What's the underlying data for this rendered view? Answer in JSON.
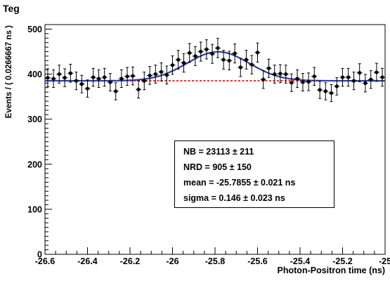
{
  "chart_data": {
    "type": "scatter",
    "title": "Teg",
    "xlabel": "Photon-Positron time (ns)",
    "ylabel": "Events / ( 0.0266667 ns )",
    "xlim": [
      -26.6,
      -25.0
    ],
    "ylim": [
      0,
      510
    ],
    "x_ticks": [
      "-26.6",
      "-26.4",
      "-26.2",
      "-26",
      "-25.8",
      "-25.6",
      "-25.4",
      "-25.2",
      "-25"
    ],
    "y_ticks": [
      "0",
      "100",
      "200",
      "300",
      "400",
      "500"
    ],
    "grid": false,
    "series": [
      {
        "style": "points-with-errors",
        "color": "#000000",
        "x": [
          -26.587,
          -26.56,
          -26.533,
          -26.507,
          -26.48,
          -26.453,
          -26.427,
          -26.4,
          -26.373,
          -26.347,
          -26.32,
          -26.293,
          -26.267,
          -26.24,
          -26.213,
          -26.187,
          -26.16,
          -26.133,
          -26.107,
          -26.08,
          -26.053,
          -26.027,
          -26.0,
          -25.973,
          -25.947,
          -25.92,
          -25.893,
          -25.867,
          -25.84,
          -25.813,
          -25.787,
          -25.76,
          -25.733,
          -25.707,
          -25.68,
          -25.653,
          -25.627,
          -25.6,
          -25.573,
          -25.547,
          -25.52,
          -25.493,
          -25.467,
          -25.44,
          -25.413,
          -25.387,
          -25.36,
          -25.333,
          -25.307,
          -25.28,
          -25.253,
          -25.227,
          -25.2,
          -25.173,
          -25.147,
          -25.12,
          -25.093,
          -25.067,
          -25.04,
          -25.013
        ],
        "y": [
          392,
          390,
          400,
          392,
          402,
          385,
          378,
          368,
          393,
          390,
          393,
          382,
          362,
          390,
          395,
          396,
          366,
          385,
          397,
          400,
          405,
          398,
          420,
          432,
          425,
          447,
          440,
          450,
          455,
          445,
          458,
          432,
          430,
          446,
          415,
          432,
          421,
          448,
          388,
          413,
          400,
          401,
          400,
          381,
          390,
          382,
          383,
          395,
          365,
          362,
          358,
          373,
          393,
          393,
          385,
          403,
          380,
          388,
          404,
          393
        ],
        "err": [
          19.8,
          19.7,
          20.0,
          19.8,
          20.0,
          19.6,
          19.4,
          19.2,
          19.8,
          19.7,
          19.8,
          19.5,
          19.0,
          19.7,
          19.9,
          19.9,
          19.1,
          19.6,
          19.9,
          20.0,
          20.1,
          19.9,
          20.5,
          20.8,
          20.6,
          21.1,
          21.0,
          21.2,
          21.3,
          21.1,
          21.4,
          20.8,
          20.7,
          21.1,
          20.4,
          20.8,
          20.5,
          21.2,
          19.7,
          20.3,
          20.0,
          20.0,
          20.0,
          19.5,
          19.7,
          19.5,
          19.6,
          19.9,
          19.1,
          19.0,
          18.9,
          19.3,
          19.8,
          19.8,
          19.6,
          20.1,
          19.5,
          19.7,
          20.1,
          19.8
        ]
      },
      {
        "style": "line",
        "color": "#2f3e9e",
        "model": "gaussian+flat",
        "baseline": 385.2,
        "amplitude": 64.4,
        "mean": -25.7855,
        "sigma": 0.146
      },
      {
        "style": "dashed-line",
        "color": "#e8302a",
        "value": 385.2
      }
    ],
    "stats": [
      "NB =  23113 ± 211",
      "NRD =  905 ± 150",
      "mean = -25.7855 ± 0.021 ns",
      "sigma =  0.146 ± 0.023 ns"
    ]
  }
}
